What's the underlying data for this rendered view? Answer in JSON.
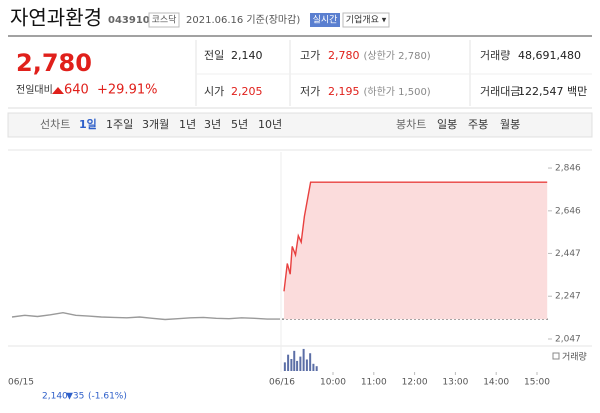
{
  "header": {
    "title": "자연과환경",
    "code": "043910",
    "market": "코스닥",
    "date": "2021.06.16 기준(장마감)",
    "realtime": "실시간",
    "overview": "기업개요 ▾"
  },
  "quote": {
    "price": "2,780",
    "change_label": "전일대비",
    "change": "640",
    "change_pct": "+29.91%",
    "stats": [
      [
        {
          "label": "전일",
          "value": "2,140",
          "color": "#222222"
        },
        {
          "label": "고가",
          "value": "2,780",
          "note": "(상한가 2,780)",
          "color": "#e0201b"
        },
        {
          "label": "거래량",
          "value": "48,691,480",
          "color": "#222222"
        }
      ],
      [
        {
          "label": "시가",
          "value": "2,205",
          "color": "#e0201b"
        },
        {
          "label": "저가",
          "value": "2,195",
          "note": "(하한가 1,500)",
          "color": "#e0201b"
        },
        {
          "label": "거래대금",
          "value": "122,547 백만",
          "color": "#222222"
        }
      ]
    ]
  },
  "tabs": {
    "line_label": "선차트",
    "line": [
      "1일",
      "1주일",
      "3개월",
      "1년",
      "3년",
      "5년",
      "10년"
    ],
    "candle_label": "봉차트",
    "candle": [
      "일봉",
      "주봉",
      "월봉"
    ]
  },
  "chart_data": {
    "type": "line",
    "ylim": [
      2019,
      2907
    ],
    "yticks": [
      {
        "value": 2047,
        "label": "2,047"
      },
      {
        "value": 2247,
        "label": "2,247"
      },
      {
        "value": 2447,
        "label": "2,447"
      },
      {
        "value": 2646,
        "label": "2,646"
      },
      {
        "value": 2846,
        "label": "2,846"
      }
    ],
    "xlim": [
      8.75,
      15.27
    ],
    "xticks": [
      {
        "value": 10,
        "label": "10:00"
      },
      {
        "value": 11,
        "label": "11:00"
      },
      {
        "value": 12,
        "label": "12:00"
      },
      {
        "value": 13,
        "label": "13:00"
      },
      {
        "value": 14,
        "label": "14:00"
      },
      {
        "value": 15,
        "label": "15:00"
      }
    ],
    "dates": [
      "06/15",
      "06/16"
    ],
    "base": 2140,
    "grid": false,
    "series": [
      {
        "name": "06/15",
        "color": "#9a9a9a",
        "x": [
          9,
          9.3,
          9.6,
          9.9,
          10.2,
          10.5,
          10.8,
          11.1,
          11.4,
          11.7,
          12,
          12.3,
          12.6,
          12.9,
          13.2,
          13.5,
          13.8,
          14.1,
          14.4,
          14.7,
          15,
          15.3
        ],
        "values": [
          2150,
          2158,
          2152,
          2160,
          2170,
          2158,
          2154,
          2150,
          2148,
          2146,
          2150,
          2144,
          2138,
          2142,
          2146,
          2148,
          2144,
          2142,
          2146,
          2144,
          2140,
          2140
        ]
      },
      {
        "name": "06/16",
        "color": "#e8403f",
        "fill": "#fbdcdc",
        "x": [
          8.8,
          8.88,
          8.95,
          9.0,
          9.08,
          9.15,
          9.22,
          9.3,
          9.45,
          15.25
        ],
        "values": [
          2270,
          2400,
          2350,
          2480,
          2440,
          2530,
          2500,
          2620,
          2780,
          2780
        ]
      }
    ],
    "volume_label": "거래량",
    "volume_color": "#5b6ea6",
    "volume_ylim": [
      0,
      5000000
    ],
    "volume": {
      "x": [
        8.82,
        8.9,
        8.98,
        9.05,
        9.12,
        9.2,
        9.28,
        9.36,
        9.44,
        9.52,
        9.6
      ],
      "values": [
        1800000,
        3400000,
        2500000,
        4200000,
        2100000,
        3000000,
        4600000,
        2400000,
        3700000,
        1500000,
        1000000
      ]
    },
    "prev_summary": {
      "close": "2,140",
      "change": "▼35",
      "pct": "(-1.61%)"
    }
  }
}
